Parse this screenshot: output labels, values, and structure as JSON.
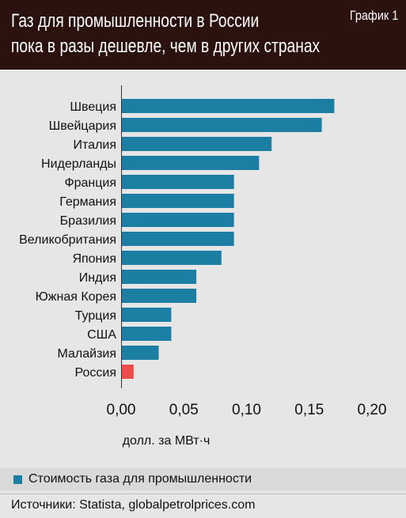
{
  "header": {
    "title_line1": "Газ для промышленности в России",
    "title_line2": "пока в разы дешевле, чем в других странах",
    "badge": "График 1"
  },
  "colors": {
    "header_bg": "#2b120f",
    "bar": "#1b7ea3",
    "highlight": "#f04b48",
    "background": "#e6e6e6"
  },
  "chart_data": {
    "type": "bar",
    "orientation": "horizontal",
    "categories": [
      "Швеция",
      "Швейцария",
      "Италия",
      "Нидерланды",
      "Франция",
      "Германия",
      "Бразилия",
      "Великобритания",
      "Япония",
      "Индия",
      "Южная Корея",
      "Турция",
      "США",
      "Малайзия",
      "Россия"
    ],
    "values": [
      0.17,
      0.16,
      0.12,
      0.11,
      0.09,
      0.09,
      0.09,
      0.09,
      0.08,
      0.06,
      0.06,
      0.04,
      0.04,
      0.03,
      0.01
    ],
    "highlight": "Россия",
    "xlim": [
      0,
      0.2
    ],
    "xticks": [
      "0,00",
      "0,05",
      "0,10",
      "0,15",
      "0,20"
    ],
    "xlabel": "долл. за МВт·ч",
    "grid": false,
    "legend": "Стоимость газа для промышленности"
  },
  "source": "Источники: Statista, globalpetrolprices.com"
}
